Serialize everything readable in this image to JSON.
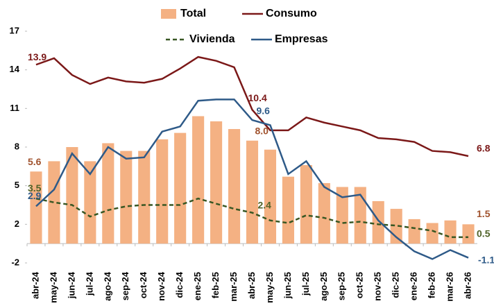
{
  "chart_data": {
    "type": "bar_line",
    "categories": [
      "abr-24",
      "may-24",
      "jun-24",
      "jul-24",
      "ago-24",
      "sep-24",
      "oct-24",
      "nov-24",
      "dic-24",
      "ene-25",
      "feb-25",
      "mar-25",
      "abr-25",
      "may-25",
      "jun-25",
      "jul-25",
      "ago-25",
      "sep-25",
      "oct-25",
      "nov-25",
      "dic-25",
      "ene-26",
      "feb-26",
      "mar-26",
      "abr-26"
    ],
    "series": [
      {
        "name": "Total",
        "type": "bar",
        "color": "#F4B183",
        "label_color": "#A0522D",
        "values": [
          5.6,
          6.4,
          7.5,
          6.4,
          7.8,
          7.2,
          7.2,
          8.1,
          8.6,
          9.9,
          9.5,
          8.9,
          8.0,
          7.3,
          5.2,
          6.1,
          4.7,
          4.4,
          4.4,
          3.3,
          2.7,
          1.9,
          1.6,
          1.8,
          1.5
        ],
        "value_labels": [
          "5.6",
          null,
          null,
          null,
          null,
          null,
          null,
          null,
          null,
          null,
          null,
          null,
          "8.0",
          null,
          null,
          null,
          null,
          null,
          null,
          null,
          null,
          null,
          null,
          null,
          "1.5"
        ]
      },
      {
        "name": "Consumo",
        "type": "line",
        "color": "#7B1818",
        "dash": false,
        "label_color": "#7B1818",
        "values": [
          13.9,
          14.4,
          13.1,
          12.4,
          12.9,
          12.6,
          12.5,
          12.8,
          13.6,
          14.5,
          14.2,
          13.7,
          10.4,
          8.8,
          8.8,
          9.8,
          9.4,
          9.1,
          8.8,
          8.2,
          8.1,
          7.9,
          7.2,
          7.1,
          6.8
        ],
        "value_labels": [
          "13.9",
          null,
          null,
          null,
          null,
          null,
          null,
          null,
          null,
          null,
          null,
          null,
          "10.4",
          null,
          null,
          null,
          null,
          null,
          null,
          null,
          null,
          null,
          null,
          null,
          "6.8"
        ]
      },
      {
        "name": "Vivienda",
        "type": "line",
        "color": "#385723",
        "dash": true,
        "label_color": "#4F6228",
        "values": [
          3.5,
          3.2,
          3.0,
          2.1,
          2.6,
          2.9,
          3.0,
          3.0,
          3.0,
          3.5,
          3.1,
          2.7,
          2.4,
          1.8,
          1.6,
          2.2,
          2.0,
          1.6,
          1.7,
          1.5,
          1.4,
          1.2,
          1.0,
          0.5,
          0.5
        ],
        "value_labels": [
          "3.5",
          null,
          null,
          null,
          null,
          null,
          null,
          null,
          null,
          null,
          null,
          null,
          "2.4",
          null,
          null,
          null,
          null,
          null,
          null,
          null,
          null,
          null,
          null,
          null,
          "0.5"
        ]
      },
      {
        "name": "Empresas",
        "type": "line",
        "color": "#2E5A88",
        "dash": false,
        "label_color": "#2E5A88",
        "values": [
          2.9,
          4.2,
          7.0,
          5.4,
          7.5,
          6.6,
          6.7,
          8.7,
          9.1,
          11.1,
          11.2,
          11.2,
          9.6,
          9.2,
          5.4,
          6.4,
          4.4,
          3.6,
          3.8,
          1.8,
          0.5,
          -0.6,
          -1.2,
          -0.5,
          -1.1
        ],
        "value_labels": [
          "2.9",
          null,
          null,
          null,
          null,
          null,
          null,
          null,
          null,
          null,
          null,
          null,
          "9.6",
          null,
          null,
          null,
          null,
          null,
          null,
          null,
          null,
          null,
          null,
          null,
          "-1.1"
        ]
      }
    ],
    "ylim": [
      -1.5,
      16.5
    ],
    "yticks": [
      {
        "value": -1.5,
        "label": "-2"
      },
      {
        "value": 1.5,
        "label": "2"
      },
      {
        "value": 4.5,
        "label": "5"
      },
      {
        "value": 7.5,
        "label": "8"
      },
      {
        "value": 10.5,
        "label": "11"
      },
      {
        "value": 13.5,
        "label": "14"
      },
      {
        "value": 16.5,
        "label": "17"
      }
    ],
    "grid": false,
    "legend": "top"
  }
}
